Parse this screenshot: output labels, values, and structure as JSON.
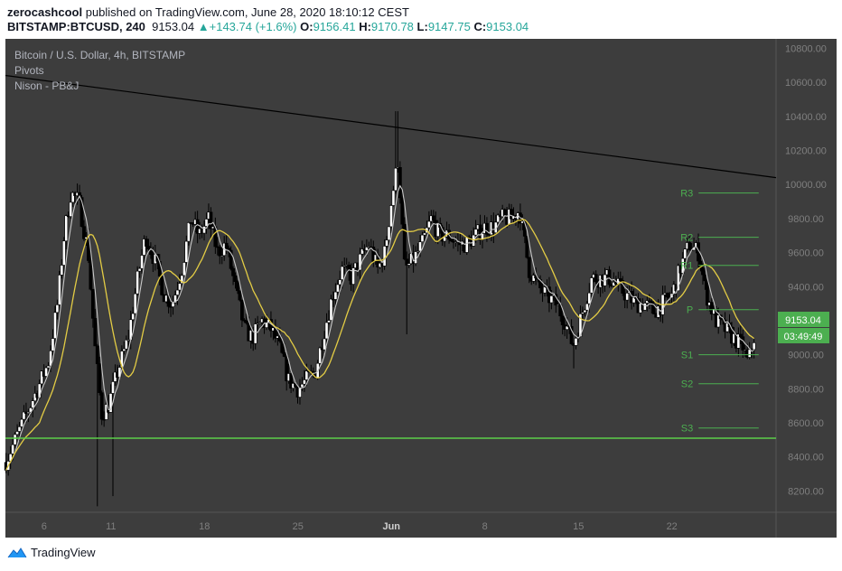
{
  "header": {
    "author": "zerocashcool",
    "published_text": "published on TradingView.com, June 28, 2020 18:10:12 CEST",
    "symbol": "BITSTAMP:BTCUSD, 240",
    "last": "9153.04",
    "change": "+143.74 (+1.6%)",
    "o_label": "O:",
    "o_val": "9156.41",
    "h_label": "H:",
    "h_val": "9170.78",
    "l_label": "L:",
    "l_val": "9147.75",
    "c_label": "C:",
    "c_val": "9153.04"
  },
  "legend": {
    "title": "Bitcoin / U.S. Dollar, 4h, BITSTAMP",
    "study1": "Pivots",
    "study2": "Nison - PB&J"
  },
  "price_tag": "9153.04",
  "countdown": "03:49:49",
  "footer": {
    "brand": "TradingView"
  },
  "colors": {
    "background": "#3d3d3d",
    "candle": "#000000",
    "sma_fast": "#c8c8c8",
    "sma_slow": "#e3cc45",
    "pivot": "#4caf50",
    "support_line": "#5ccf4a",
    "trendline": "#000000",
    "axis_text": "#7f7f7f"
  },
  "chart_data": {
    "type": "candlestick",
    "symbol": "BITSTAMP:BTCUSD",
    "timeframe": "4h",
    "ylim": [
      8075,
      10855
    ],
    "y_ticks": [
      8200,
      8400,
      8600,
      8800,
      9000,
      9200,
      9400,
      9600,
      9800,
      10000,
      10200,
      10400,
      10600,
      10800
    ],
    "y_tick_labels": [
      "8200.00",
      "8400.00",
      "8600.00",
      "8800.00",
      "9000.00",
      "9200.00",
      "9400.00",
      "9600.00",
      "9800.00",
      "10000.00",
      "10200.00",
      "10400.00",
      "10600.00",
      "10800.00"
    ],
    "x_range_days": [
      3.1,
      30.9
    ],
    "x_ticks": [
      {
        "day": 6,
        "label": "6"
      },
      {
        "day": 11,
        "label": "11"
      },
      {
        "day": 18,
        "label": "18"
      },
      {
        "day": 25,
        "label": "25"
      },
      {
        "day": 32,
        "label": "Jun"
      },
      {
        "day": 39,
        "label": "8"
      },
      {
        "day": 46,
        "label": "15"
      },
      {
        "day": 53,
        "label": "22"
      }
    ],
    "price_path": [
      [
        5.5,
        8800
      ],
      [
        6.3,
        8950
      ],
      [
        7.0,
        9300
      ],
      [
        7.5,
        9700
      ],
      [
        8.0,
        9950
      ],
      [
        8.6,
        9900
      ],
      [
        9.3,
        9600
      ],
      [
        9.8,
        9050
      ],
      [
        10.3,
        8650
      ],
      [
        10.8,
        8700
      ],
      [
        11.5,
        8900
      ],
      [
        12.3,
        9100
      ],
      [
        13.0,
        9450
      ],
      [
        13.6,
        9700
      ],
      [
        14.3,
        9550
      ],
      [
        15.0,
        9350
      ],
      [
        15.6,
        9300
      ],
      [
        16.3,
        9500
      ],
      [
        17.0,
        9800
      ],
      [
        17.6,
        9700
      ],
      [
        18.3,
        9800
      ],
      [
        19.0,
        9600
      ],
      [
        19.6,
        9650
      ],
      [
        20.3,
        9400
      ],
      [
        21.0,
        9150
      ],
      [
        21.6,
        9100
      ],
      [
        22.3,
        9200
      ],
      [
        23.0,
        9150
      ],
      [
        23.6,
        9050
      ],
      [
        24.3,
        8850
      ],
      [
        25.0,
        8800
      ],
      [
        25.6,
        8850
      ],
      [
        26.3,
        8900
      ],
      [
        27.0,
        9150
      ],
      [
        27.6,
        9350
      ],
      [
        28.3,
        9500
      ],
      [
        29.0,
        9450
      ],
      [
        29.6,
        9550
      ],
      [
        30.3,
        9650
      ],
      [
        31.0,
        9500
      ],
      [
        31.5,
        9600
      ],
      [
        32.0,
        9900
      ],
      [
        32.5,
        10150
      ],
      [
        33.0,
        9500
      ],
      [
        33.6,
        9550
      ],
      [
        34.3,
        9650
      ],
      [
        35.0,
        9800
      ],
      [
        35.6,
        9700
      ],
      [
        36.3,
        9700
      ],
      [
        37.0,
        9650
      ],
      [
        37.6,
        9650
      ],
      [
        38.3,
        9700
      ],
      [
        39.0,
        9750
      ],
      [
        39.6,
        9750
      ],
      [
        40.3,
        9800
      ],
      [
        41.0,
        9800
      ],
      [
        41.6,
        9850
      ],
      [
        42.3,
        9500
      ],
      [
        43.0,
        9400
      ],
      [
        43.6,
        9350
      ],
      [
        44.3,
        9300
      ],
      [
        45.0,
        9200
      ],
      [
        45.6,
        9050
      ],
      [
        46.3,
        9250
      ],
      [
        47.0,
        9450
      ],
      [
        47.6,
        9450
      ],
      [
        48.3,
        9450
      ],
      [
        49.0,
        9400
      ],
      [
        49.6,
        9350
      ],
      [
        50.3,
        9300
      ],
      [
        51.0,
        9300
      ],
      [
        51.6,
        9250
      ],
      [
        52.3,
        9300
      ],
      [
        53.0,
        9350
      ],
      [
        53.6,
        9500
      ],
      [
        54.3,
        9650
      ],
      [
        55.0,
        9600
      ],
      [
        55.6,
        9350
      ],
      [
        56.3,
        9200
      ],
      [
        57.0,
        9150
      ],
      [
        57.6,
        9100
      ],
      [
        58.3,
        9050
      ],
      [
        58.7,
        8950
      ],
      [
        59.0,
        9050
      ],
      [
        59.3,
        9153
      ]
    ],
    "pivots": [
      {
        "label": "R3",
        "value": 9950
      },
      {
        "label": "R2",
        "value": 9690
      },
      {
        "label": "R1",
        "value": 9525
      },
      {
        "label": "P",
        "value": 9265
      },
      {
        "label": "S1",
        "value": 9000
      },
      {
        "label": "S2",
        "value": 8830
      },
      {
        "label": "S3",
        "value": 8570
      }
    ],
    "pivot_period": [
      55.0,
      59.5
    ],
    "support_level": 8510,
    "trendline": [
      [
        3.1,
        10640
      ],
      [
        60.8,
        10040
      ]
    ],
    "last_price": 9153.04
  }
}
